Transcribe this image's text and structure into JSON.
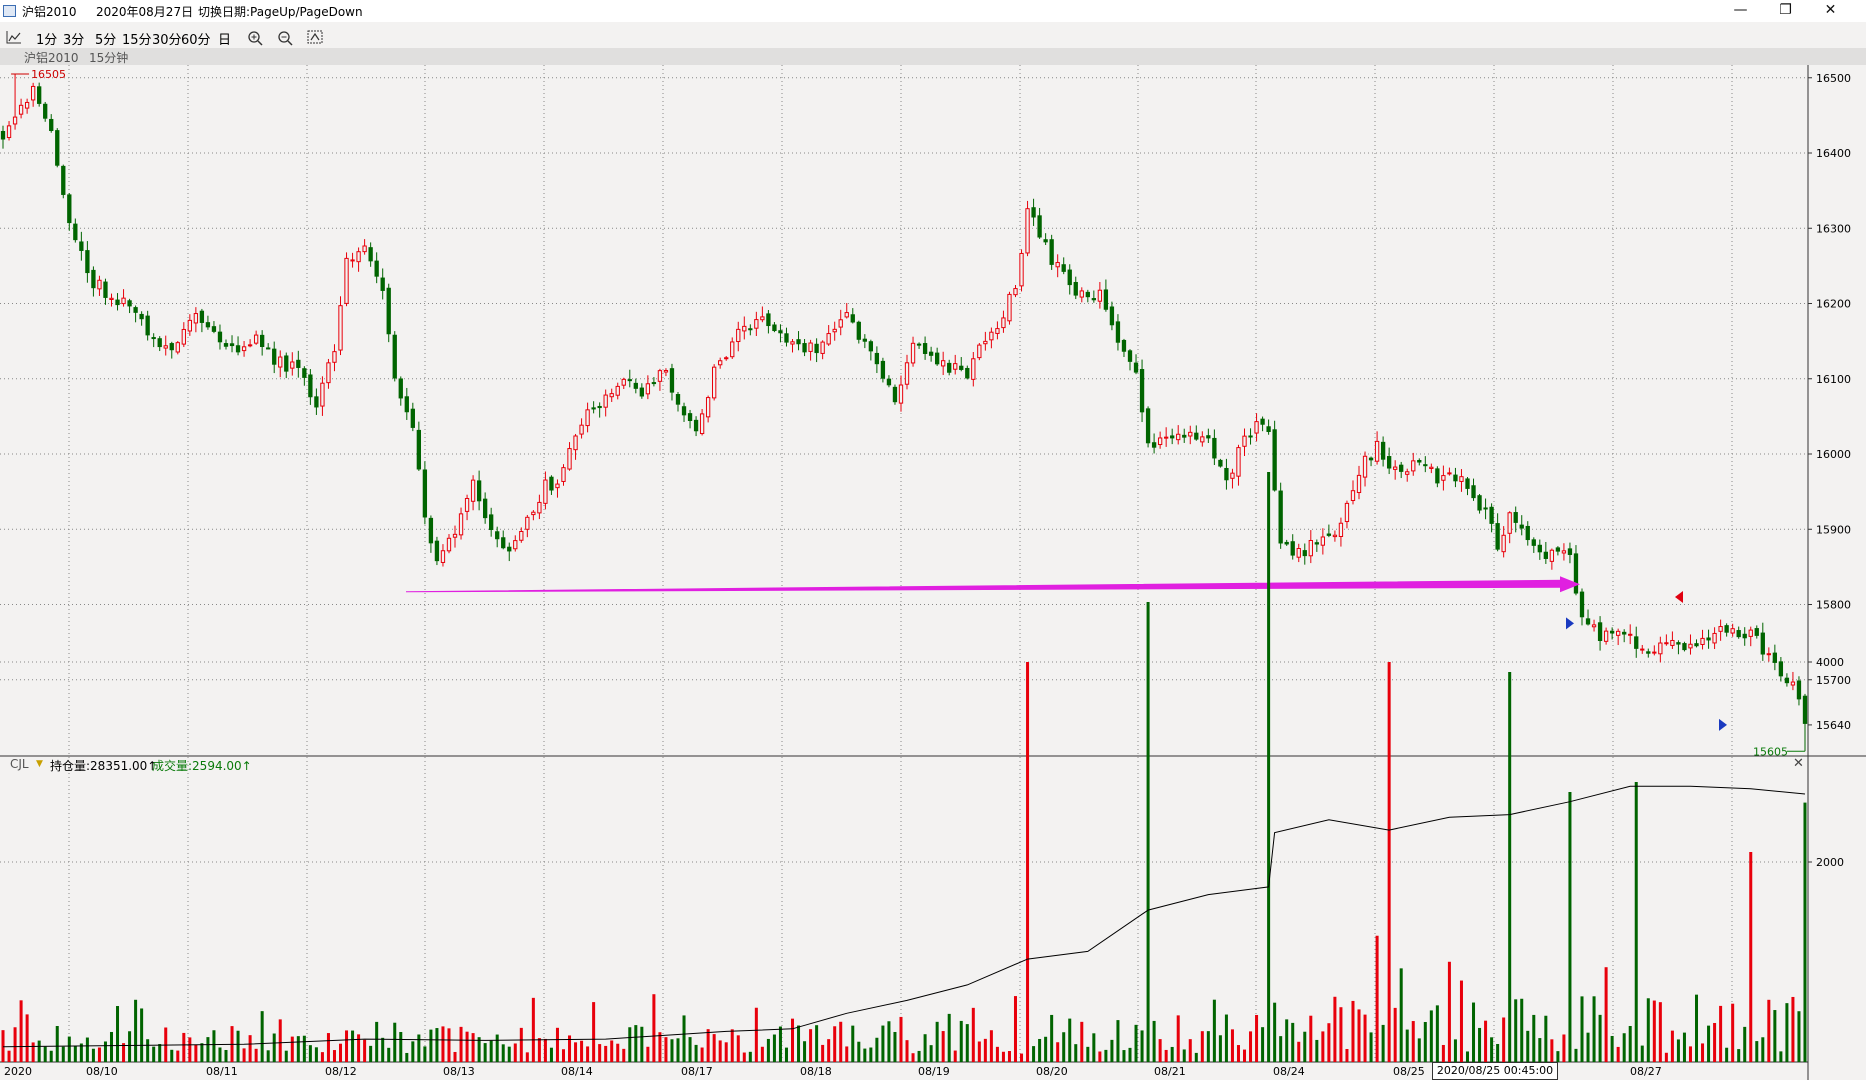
{
  "window": {
    "title": "沪铝2010",
    "date": "2020年08月27日",
    "hint": "切换日期:PageUp/PageDown"
  },
  "toolbar": {
    "items": [
      "1分",
      "3分",
      "5分",
      "15分",
      "30分",
      "60分",
      "日"
    ]
  },
  "subtitle": {
    "symbol": "沪铝2010",
    "period": "15分钟"
  },
  "indicator": {
    "name": "CJL",
    "oi_label": "持仓量:28351.00↑",
    "vol_label": "成交量:2594.00↑"
  },
  "colors": {
    "up": "#e8000b",
    "down": "#006400",
    "arrow": "#e020e0",
    "grid": "#888888",
    "bg": "#f3f2f1"
  },
  "icons": [
    "chart-type-icon",
    "zoom-in-icon",
    "zoom-out-icon",
    "reset-zoom-icon",
    "minimize-icon",
    "restore-icon",
    "close-icon"
  ],
  "crosshair_label": "2020/08/25 00:45:00",
  "chart_data": {
    "type": "candlestick",
    "title": "沪铝2010 15分钟",
    "price_axis": {
      "ticks": [
        16500,
        16400,
        16300,
        16200,
        16100,
        16000,
        15900,
        15800,
        15700,
        15640
      ],
      "range": [
        15605,
        16505
      ]
    },
    "x_ticks": [
      "2020",
      "08/10",
      "08/11",
      "08/12",
      "08/13",
      "08/14",
      "08/17",
      "08/18",
      "08/19",
      "08/20",
      "08/21",
      "08/24",
      "08/25",
      "08/27"
    ],
    "high_label": "16505",
    "low_label": "15605",
    "path": [
      [
        0,
        16420
      ],
      [
        5,
        16480
      ],
      [
        8,
        16430
      ],
      [
        10,
        16350
      ],
      [
        12,
        16280
      ],
      [
        15,
        16230
      ],
      [
        18,
        16210
      ],
      [
        20,
        16200
      ],
      [
        22,
        16190
      ],
      [
        25,
        16150
      ],
      [
        28,
        16130
      ],
      [
        32,
        16190
      ],
      [
        35,
        16160
      ],
      [
        38,
        16140
      ],
      [
        42,
        16150
      ],
      [
        46,
        16120
      ],
      [
        50,
        16110
      ],
      [
        52,
        16060
      ],
      [
        55,
        16140
      ],
      [
        57,
        16260
      ],
      [
        60,
        16270
      ],
      [
        63,
        16210
      ],
      [
        65,
        16100
      ],
      [
        68,
        16040
      ],
      [
        70,
        15920
      ],
      [
        72,
        15860
      ],
      [
        75,
        15900
      ],
      [
        78,
        15960
      ],
      [
        80,
        15920
      ],
      [
        82,
        15880
      ],
      [
        84,
        15880
      ],
      [
        88,
        15920
      ],
      [
        90,
        15960
      ],
      [
        92,
        15960
      ],
      [
        95,
        16030
      ],
      [
        100,
        16080
      ],
      [
        103,
        16100
      ],
      [
        106,
        16080
      ],
      [
        110,
        16110
      ],
      [
        112,
        16070
      ],
      [
        115,
        16030
      ],
      [
        118,
        16110
      ],
      [
        122,
        16160
      ],
      [
        126,
        16180
      ],
      [
        130,
        16150
      ],
      [
        135,
        16140
      ],
      [
        140,
        16180
      ],
      [
        145,
        16120
      ],
      [
        148,
        16070
      ],
      [
        151,
        16150
      ],
      [
        155,
        16120
      ],
      [
        160,
        16110
      ],
      [
        162,
        16140
      ],
      [
        165,
        16170
      ],
      [
        168,
        16220
      ],
      [
        170,
        16330
      ],
      [
        174,
        16260
      ],
      [
        178,
        16220
      ],
      [
        182,
        16210
      ],
      [
        185,
        16150
      ],
      [
        188,
        16100
      ],
      [
        190,
        16010
      ],
      [
        194,
        16020
      ],
      [
        197,
        16030
      ],
      [
        200,
        16020
      ],
      [
        203,
        15960
      ],
      [
        206,
        16020
      ],
      [
        208,
        16040
      ],
      [
        210,
        16030
      ],
      [
        212,
        15880
      ],
      [
        215,
        15870
      ],
      [
        218,
        15880
      ],
      [
        222,
        15900
      ],
      [
        225,
        15980
      ],
      [
        228,
        16010
      ],
      [
        232,
        15970
      ],
      [
        234,
        15990
      ],
      [
        238,
        15970
      ],
      [
        242,
        15970
      ],
      [
        246,
        15920
      ],
      [
        248,
        15880
      ],
      [
        250,
        15920
      ],
      [
        252,
        15900
      ],
      [
        256,
        15870
      ],
      [
        260,
        15860
      ],
      [
        262,
        15780
      ],
      [
        265,
        15760
      ],
      [
        268,
        15770
      ],
      [
        272,
        15740
      ],
      [
        276,
        15750
      ],
      [
        280,
        15740
      ],
      [
        284,
        15760
      ],
      [
        286,
        15770
      ],
      [
        290,
        15760
      ],
      [
        294,
        15720
      ],
      [
        297,
        15690
      ],
      [
        299,
        15642
      ]
    ],
    "annotation": {
      "type": "arrow",
      "from": [
        "08/13",
        15817
      ],
      "to": [
        "08/25",
        15827
      ]
    },
    "markers": [
      {
        "type": "triangle-up",
        "color": "red",
        "price": 15810
      },
      {
        "type": "triangle-right",
        "color": "blue",
        "price": 15775
      },
      {
        "type": "triangle-right",
        "color": "blue",
        "price": 15640
      }
    ],
    "volume_axis": {
      "ticks": [
        4000,
        2000
      ],
      "range": [
        0,
        5900
      ]
    },
    "volume_spikes": [
      {
        "index": 170,
        "value": 4000,
        "color": "up"
      },
      {
        "index": 190,
        "value": 4600,
        "color": "down"
      },
      {
        "index": 210,
        "value": 5900,
        "color": "down"
      },
      {
        "index": 230,
        "value": 4000,
        "color": "up"
      },
      {
        "index": 250,
        "value": 3900,
        "color": "down"
      },
      {
        "index": 260,
        "value": 2700,
        "color": "down"
      },
      {
        "index": 271,
        "value": 2800,
        "color": "down"
      },
      {
        "index": 290,
        "value": 2100,
        "color": "up"
      },
      {
        "index": 299,
        "value": 2594,
        "color": "down"
      }
    ],
    "open_interest": {
      "series": [
        [
          0,
          0.02
        ],
        [
          20,
          0.025
        ],
        [
          40,
          0.03
        ],
        [
          60,
          0.05
        ],
        [
          80,
          0.045
        ],
        [
          100,
          0.05
        ],
        [
          120,
          0.08
        ],
        [
          131,
          0.09
        ],
        [
          140,
          0.15
        ],
        [
          150,
          0.2
        ],
        [
          160,
          0.26
        ],
        [
          170,
          0.36
        ],
        [
          180,
          0.39
        ],
        [
          190,
          0.55
        ],
        [
          200,
          0.61
        ],
        [
          210,
          0.64
        ],
        [
          211,
          0.85
        ],
        [
          220,
          0.9
        ],
        [
          230,
          0.86
        ],
        [
          240,
          0.91
        ],
        [
          250,
          0.92
        ],
        [
          260,
          0.97
        ],
        [
          270,
          1.03
        ],
        [
          280,
          1.03
        ],
        [
          290,
          1.02
        ],
        [
          299,
          1.0
        ]
      ]
    }
  }
}
